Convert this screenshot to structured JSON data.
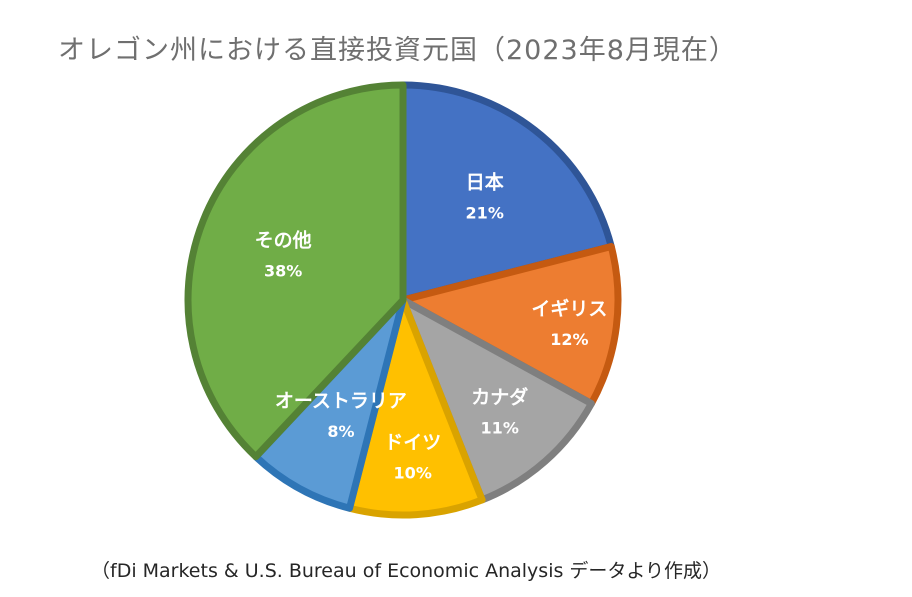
{
  "chart_data": {
    "type": "pie",
    "title": "オレゴン州における直接投資元国（2023年8月現在）",
    "source": "（fDi Markets & U.S. Bureau of Economic Analysis データより作成）",
    "slices": [
      {
        "label": "日本",
        "value": 21,
        "value_label": "21%",
        "color": "#4472c4",
        "border": "#2f5597"
      },
      {
        "label": "イギリス",
        "value": 12,
        "value_label": "12%",
        "color": "#ed7d31",
        "border": "#c55a11"
      },
      {
        "label": "カナダ",
        "value": 11,
        "value_label": "11%",
        "color": "#a5a5a5",
        "border": "#7f7f7f"
      },
      {
        "label": "ドイツ",
        "value": 10,
        "value_label": "10%",
        "color": "#ffc000",
        "border": "#d9a300"
      },
      {
        "label": "オーストラリア",
        "value": 8,
        "value_label": "8%",
        "color": "#5b9bd5",
        "border": "#2e75b6"
      },
      {
        "label": "その他",
        "value": 38,
        "value_label": "38%",
        "color": "#70ad47",
        "border": "#548235"
      }
    ]
  }
}
